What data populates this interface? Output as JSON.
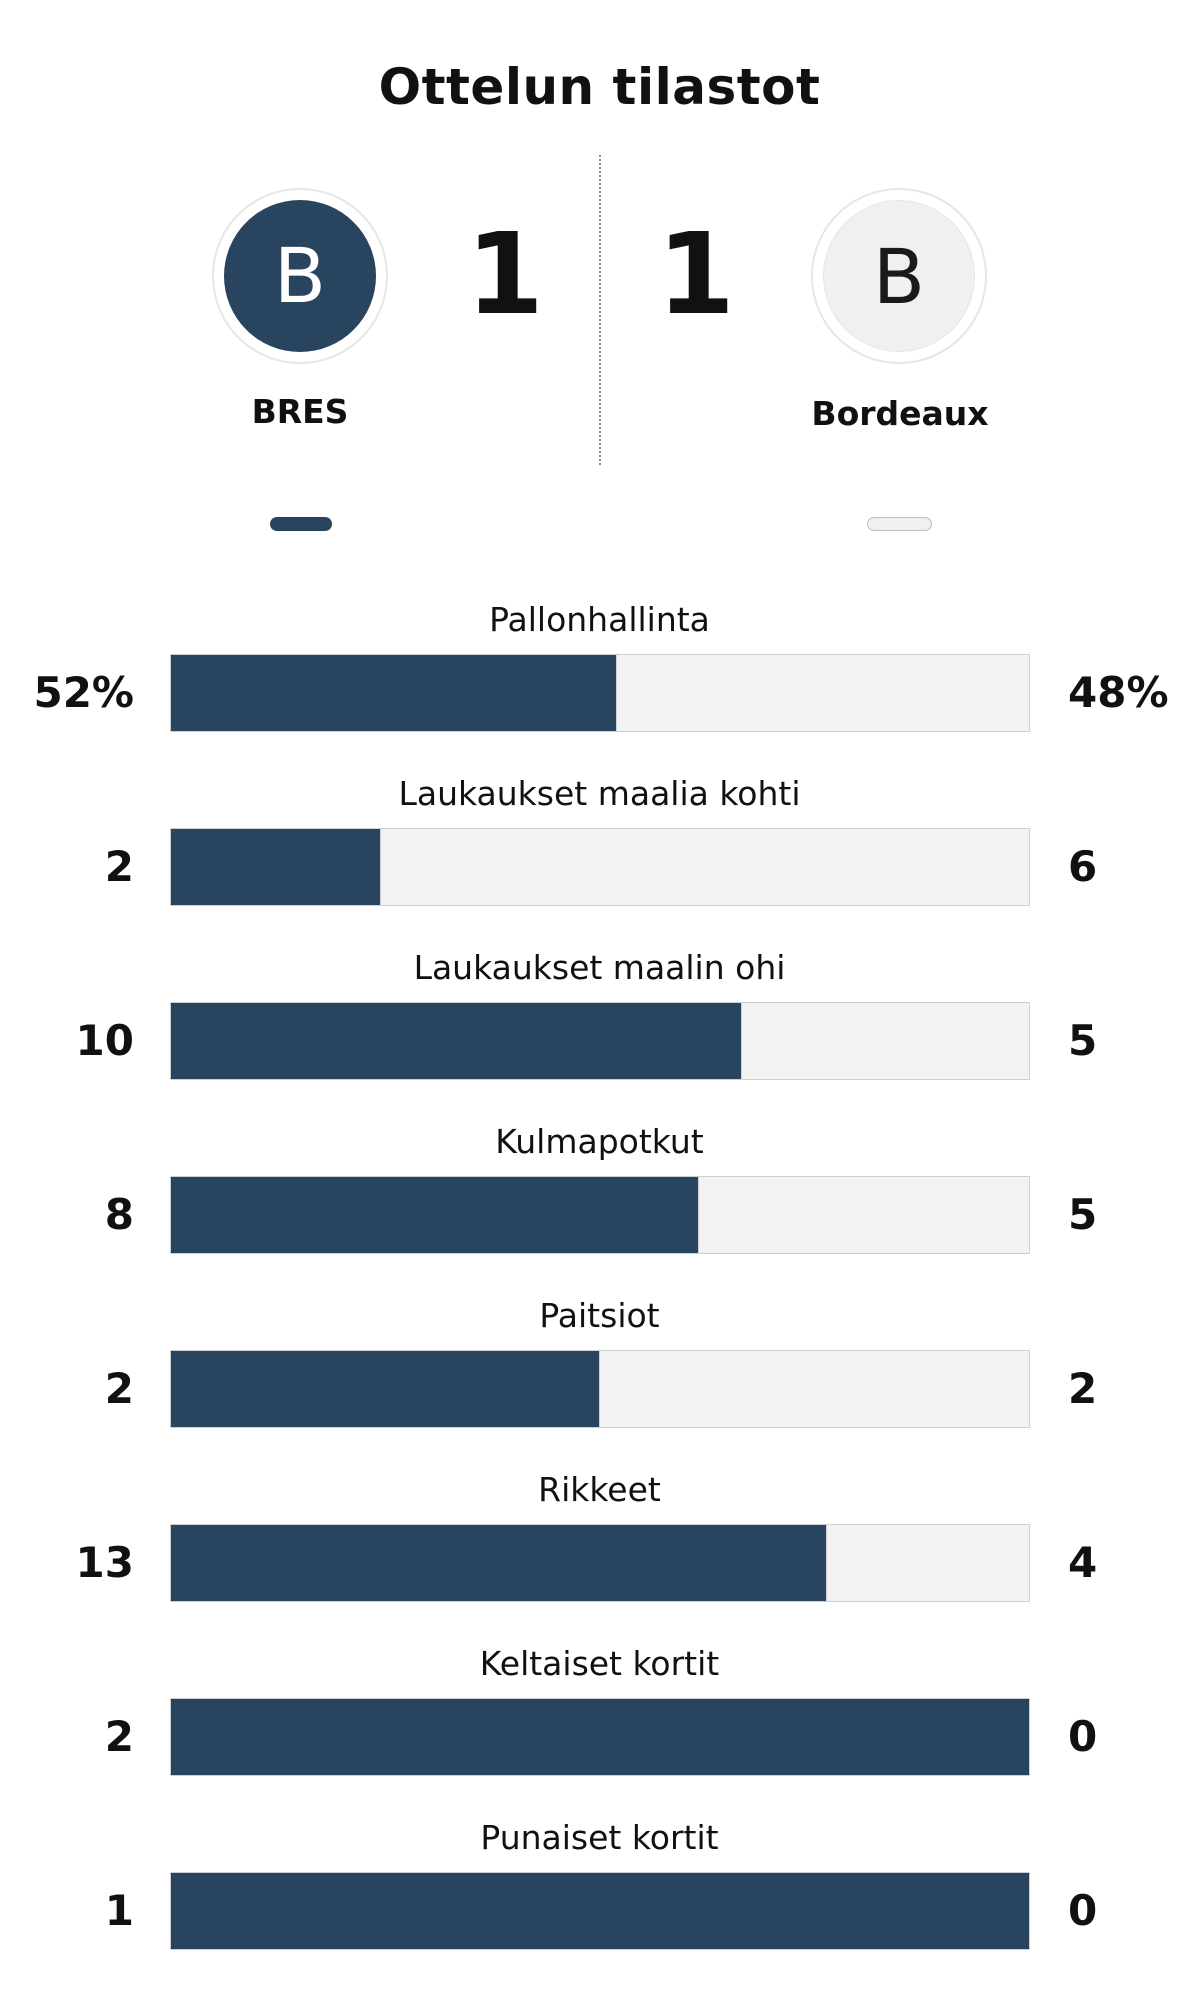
{
  "header": {
    "title": "Ottelun tilastot"
  },
  "teams": {
    "home": {
      "name": "BRES",
      "logo_letter": "B",
      "score": "1",
      "color": "#29445e"
    },
    "away": {
      "name": "Bordeaux",
      "logo_letter": "B",
      "score": "1",
      "color": "#f0f0f0"
    }
  },
  "stats": [
    {
      "label": "Pallonhallinta",
      "home": "52%",
      "away": "48%",
      "home_share": 0.52
    },
    {
      "label": "Laukaukset maalia kohti",
      "home": "2",
      "away": "6",
      "home_share": 0.245
    },
    {
      "label": "Laukaukset maalin ohi",
      "home": "10",
      "away": "5",
      "home_share": 0.665
    },
    {
      "label": "Kulmapotkut",
      "home": "8",
      "away": "5",
      "home_share": 0.615
    },
    {
      "label": "Paitsiot",
      "home": "2",
      "away": "2",
      "home_share": 0.5
    },
    {
      "label": "Rikkeet",
      "home": "13",
      "away": "4",
      "home_share": 0.765
    },
    {
      "label": "Keltaiset kortit",
      "home": "2",
      "away": "0",
      "home_share": 1.0
    },
    {
      "label": "Punaiset kortit",
      "home": "1",
      "away": "0",
      "home_share": 1.0
    }
  ]
}
